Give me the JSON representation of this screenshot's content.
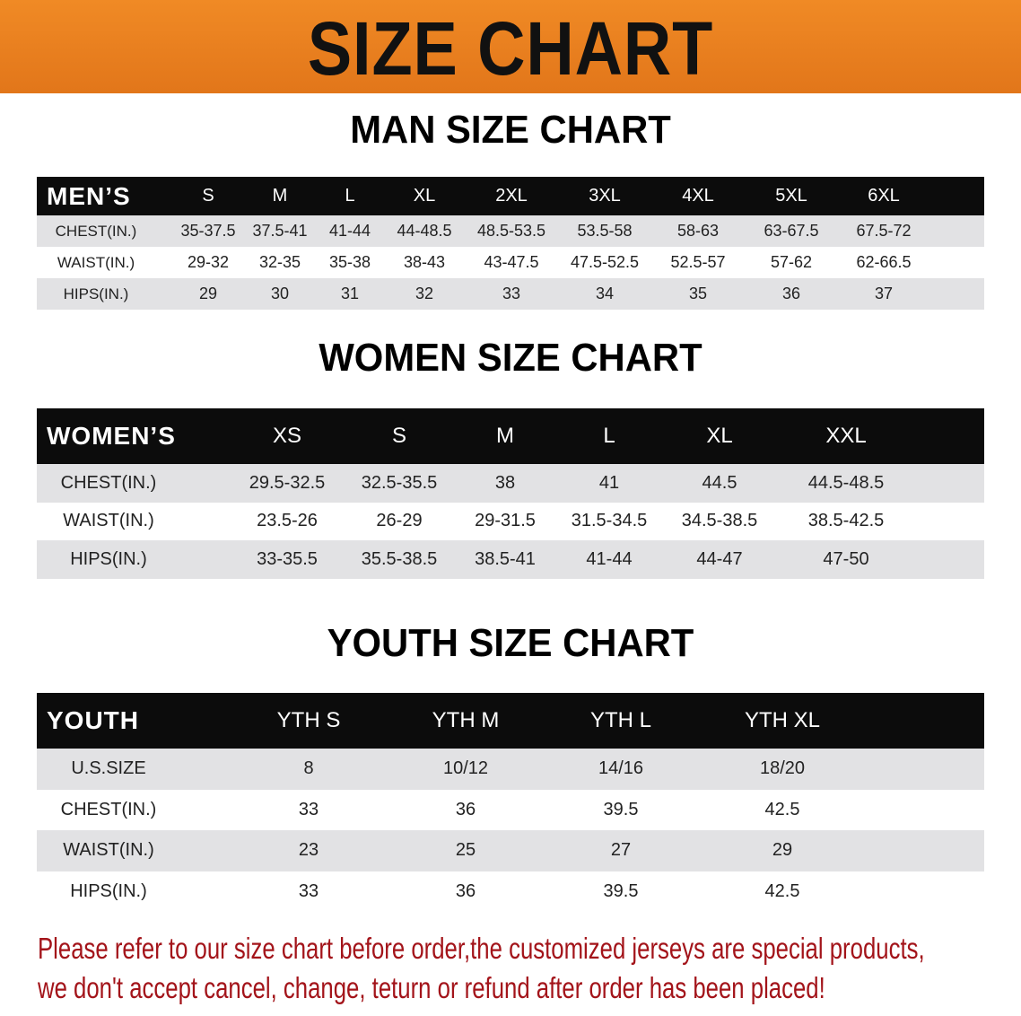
{
  "banner": {
    "title": "SIZE CHART",
    "color": "#e8801e"
  },
  "men": {
    "title": "MAN SIZE CHART",
    "header": [
      "MEN’S",
      "S",
      "M",
      "L",
      "XL",
      "2XL",
      "3XL",
      "4XL",
      "5XL",
      "6XL"
    ],
    "rows": [
      [
        "CHEST(IN.)",
        "35-37.5",
        "37.5-41",
        "41-44",
        "44-48.5",
        "48.5-53.5",
        "53.5-58",
        "58-63",
        "63-67.5",
        "67.5-72"
      ],
      [
        "WAIST(IN.)",
        "29-32",
        "32-35",
        "35-38",
        "38-43",
        "43-47.5",
        "47.5-52.5",
        "52.5-57",
        "57-62",
        "62-66.5"
      ],
      [
        "HIPS(IN.)",
        "29",
        "30",
        "31",
        "32",
        "33",
        "34",
        "35",
        "36",
        "37"
      ]
    ]
  },
  "women": {
    "title": "WOMEN SIZE CHART",
    "header": [
      "WOMEN’S",
      "XS",
      "S",
      "M",
      "L",
      "XL",
      "XXL"
    ],
    "rows": [
      [
        "CHEST(IN.)",
        "29.5-32.5",
        "32.5-35.5",
        "38",
        "41",
        "44.5",
        "44.5-48.5"
      ],
      [
        "WAIST(IN.)",
        "23.5-26",
        "26-29",
        "29-31.5",
        "31.5-34.5",
        "34.5-38.5",
        "38.5-42.5"
      ],
      [
        "HIPS(IN.)",
        "33-35.5",
        "35.5-38.5",
        "38.5-41",
        "41-44",
        "44-47",
        "47-50"
      ]
    ]
  },
  "youth": {
    "title": "YOUTH SIZE CHART",
    "header": [
      "YOUTH",
      "YTH S",
      "YTH M",
      "YTH L",
      "YTH XL"
    ],
    "rows": [
      [
        "U.S.SIZE",
        "8",
        "10/12",
        "14/16",
        "18/20"
      ],
      [
        "CHEST(IN.)",
        "33",
        "36",
        "39.5",
        "42.5"
      ],
      [
        "WAIST(IN.)",
        "23",
        "25",
        "27",
        "29"
      ],
      [
        "HIPS(IN.)",
        "33",
        "36",
        "39.5",
        "42.5"
      ]
    ]
  },
  "note": {
    "line1": "Please refer to our size chart before order,the customized jerseys are special products,",
    "line2": "we don't accept cancel, change, teturn or refund after order has been placed!",
    "color": "#a3141a"
  }
}
